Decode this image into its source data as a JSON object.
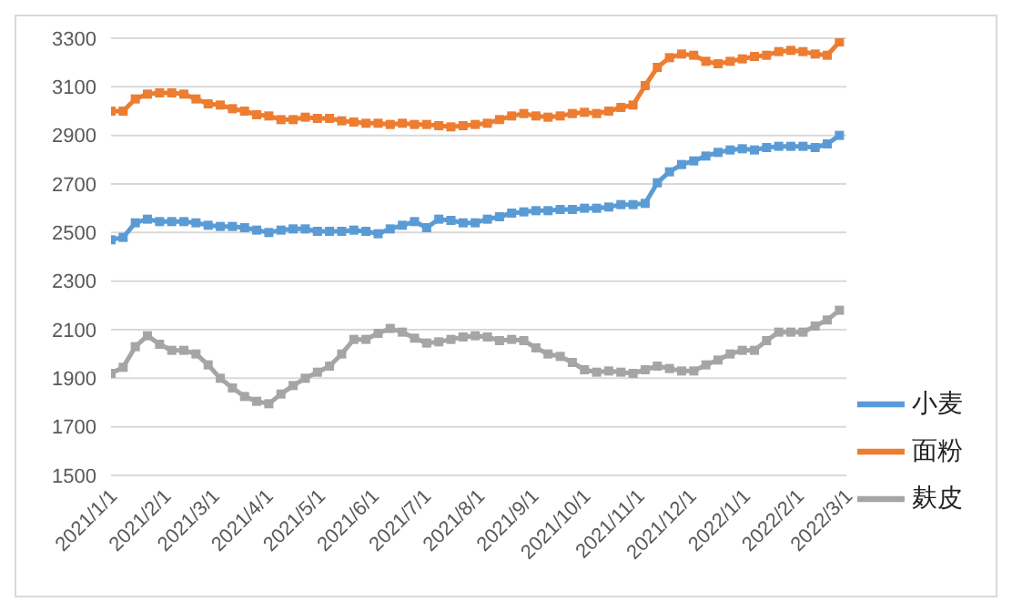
{
  "chart_data": {
    "type": "line",
    "x": [
      "2021-01-01",
      "2021-01-08",
      "2021-01-15",
      "2021-01-22",
      "2021-01-29",
      "2021-02-05",
      "2021-02-12",
      "2021-02-19",
      "2021-02-26",
      "2021-03-05",
      "2021-03-12",
      "2021-03-19",
      "2021-03-26",
      "2021-04-02",
      "2021-04-09",
      "2021-04-16",
      "2021-04-23",
      "2021-04-30",
      "2021-05-07",
      "2021-05-14",
      "2021-05-21",
      "2021-05-28",
      "2021-06-04",
      "2021-06-11",
      "2021-06-18",
      "2021-06-25",
      "2021-07-02",
      "2021-07-09",
      "2021-07-16",
      "2021-07-23",
      "2021-07-30",
      "2021-08-06",
      "2021-08-13",
      "2021-08-20",
      "2021-08-27",
      "2021-09-03",
      "2021-09-10",
      "2021-09-17",
      "2021-09-24",
      "2021-10-01",
      "2021-10-08",
      "2021-10-15",
      "2021-10-22",
      "2021-10-29",
      "2021-11-05",
      "2021-11-12",
      "2021-11-19",
      "2021-11-26",
      "2021-12-03",
      "2021-12-10",
      "2021-12-17",
      "2021-12-24",
      "2021-12-31",
      "2022-01-07",
      "2022-01-14",
      "2022-01-21",
      "2022-01-28",
      "2022-02-04",
      "2022-02-11",
      "2022-02-18",
      "2022-02-25"
    ],
    "series": [
      {
        "name": "小麦",
        "color": "#5b9bd5",
        "values": [
          2470,
          2480,
          2540,
          2555,
          2545,
          2545,
          2545,
          2540,
          2530,
          2525,
          2525,
          2520,
          2510,
          2500,
          2510,
          2515,
          2515,
          2505,
          2505,
          2505,
          2510,
          2505,
          2495,
          2515,
          2530,
          2545,
          2520,
          2555,
          2550,
          2540,
          2540,
          2555,
          2565,
          2580,
          2585,
          2590,
          2590,
          2595,
          2595,
          2600,
          2600,
          2605,
          2615,
          2615,
          2620,
          2705,
          2750,
          2780,
          2795,
          2815,
          2830,
          2840,
          2845,
          2840,
          2850,
          2855,
          2855,
          2855,
          2850,
          2865,
          2900
        ]
      },
      {
        "name": "面粉",
        "color": "#ed7d31",
        "values": [
          3000,
          3000,
          3050,
          3070,
          3075,
          3075,
          3070,
          3050,
          3030,
          3025,
          3010,
          3000,
          2985,
          2980,
          2965,
          2965,
          2975,
          2970,
          2970,
          2960,
          2955,
          2950,
          2950,
          2945,
          2950,
          2945,
          2945,
          2940,
          2935,
          2940,
          2945,
          2950,
          2965,
          2980,
          2990,
          2980,
          2975,
          2980,
          2990,
          2995,
          2990,
          3000,
          3015,
          3025,
          3105,
          3180,
          3220,
          3235,
          3230,
          3205,
          3195,
          3205,
          3215,
          3225,
          3230,
          3245,
          3250,
          3245,
          3235,
          3230,
          3285
        ]
      },
      {
        "name": "麸皮",
        "color": "#a5a5a5",
        "values": [
          1920,
          1945,
          2030,
          2075,
          2040,
          2015,
          2015,
          2000,
          1955,
          1900,
          1860,
          1825,
          1805,
          1795,
          1835,
          1870,
          1900,
          1925,
          1950,
          2000,
          2060,
          2060,
          2085,
          2105,
          2090,
          2065,
          2045,
          2050,
          2060,
          2070,
          2075,
          2070,
          2055,
          2060,
          2055,
          2025,
          2000,
          1990,
          1965,
          1935,
          1925,
          1930,
          1925,
          1920,
          1935,
          1950,
          1940,
          1930,
          1930,
          1955,
          1975,
          2000,
          2015,
          2015,
          2055,
          2090,
          2090,
          2090,
          2115,
          2140,
          2180
        ]
      }
    ],
    "xlim": [
      "2021-01-01",
      "2022-03-01"
    ],
    "xticks": [
      {
        "value": "2021-01-01",
        "label": "2021/1/1"
      },
      {
        "value": "2021-02-01",
        "label": "2021/2/1"
      },
      {
        "value": "2021-03-01",
        "label": "2021/3/1"
      },
      {
        "value": "2021-04-01",
        "label": "2021/4/1"
      },
      {
        "value": "2021-05-01",
        "label": "2021/5/1"
      },
      {
        "value": "2021-06-01",
        "label": "2021/6/1"
      },
      {
        "value": "2021-07-01",
        "label": "2021/7/1"
      },
      {
        "value": "2021-08-01",
        "label": "2021/8/1"
      },
      {
        "value": "2021-09-01",
        "label": "2021/9/1"
      },
      {
        "value": "2021-10-01",
        "label": "2021/10/1"
      },
      {
        "value": "2021-11-01",
        "label": "2021/11/1"
      },
      {
        "value": "2021-12-01",
        "label": "2021/12/1"
      },
      {
        "value": "2022-01-01",
        "label": "2022/1/1"
      },
      {
        "value": "2022-02-01",
        "label": "2022/2/1"
      },
      {
        "value": "2022-03-01",
        "label": "2022/3/1"
      }
    ],
    "ylim": [
      1500,
      3300
    ],
    "yticks": [
      1500,
      1700,
      1900,
      2100,
      2300,
      2500,
      2700,
      2900,
      3100,
      3300
    ],
    "grid": "y",
    "legend": "right",
    "marker": "square",
    "line_style": "solid"
  }
}
